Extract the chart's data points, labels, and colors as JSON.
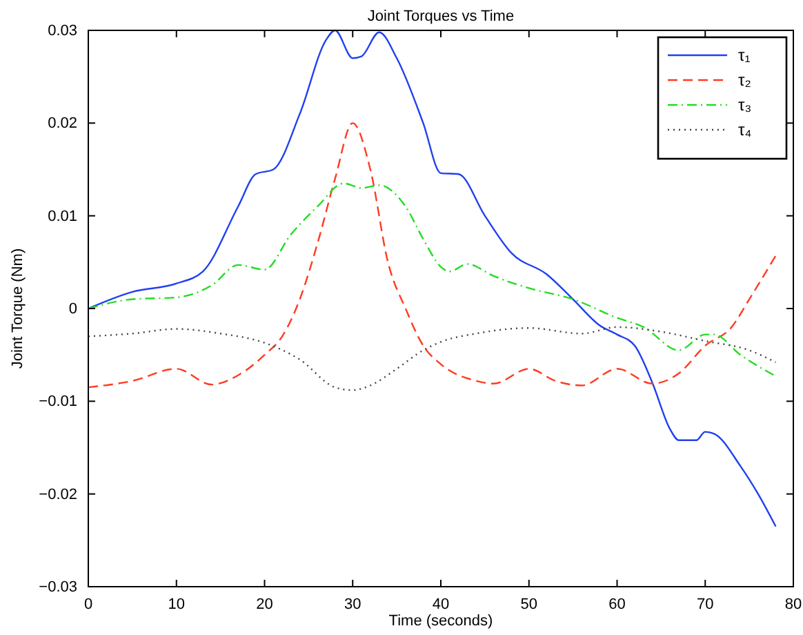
{
  "chart_data": {
    "type": "line",
    "title": "Joint Torques vs Time",
    "xlabel": "Time (seconds)",
    "ylabel": "Joint Torque (Nm)",
    "xlim": [
      0,
      80
    ],
    "ylim": [
      -0.03,
      0.03
    ],
    "xticks": [
      0,
      10,
      20,
      30,
      40,
      50,
      60,
      70,
      80
    ],
    "yticks": [
      -0.03,
      -0.02,
      -0.01,
      0,
      0.01,
      0.02,
      0.03
    ],
    "grid": false,
    "legend": "top right",
    "marker": "none",
    "series": [
      {
        "name": "τ₁",
        "color": "#2040f0",
        "line_style": "solid",
        "x": [
          0,
          5,
          10,
          13,
          17,
          19,
          21,
          24,
          27,
          28,
          30,
          31,
          33,
          35,
          38,
          40,
          42,
          45,
          48,
          52,
          55,
          58,
          60,
          62,
          64,
          66,
          67,
          69,
          70,
          71,
          74,
          76,
          78
        ],
        "values": [
          0,
          0.0018,
          0.0027,
          0.004,
          0.011,
          0.0145,
          0.015,
          0.021,
          0.029,
          0.03,
          0.027,
          0.0272,
          0.0298,
          0.027,
          0.02,
          0.0146,
          0.0145,
          0.01,
          0.006,
          0.0037,
          0.001,
          -0.0018,
          -0.0028,
          -0.004,
          -0.008,
          -0.013,
          -0.0142,
          -0.0142,
          -0.0133,
          -0.0135,
          -0.017,
          -0.02,
          -0.0235
        ]
      },
      {
        "name": "τ₂",
        "color": "#ff3b1f",
        "line_style": "dashed",
        "x": [
          0,
          5,
          10,
          14,
          17,
          20,
          22,
          24,
          26,
          28,
          30,
          32,
          34,
          36,
          38,
          40,
          44,
          46,
          50,
          53,
          56,
          60,
          64,
          67,
          70,
          73,
          75,
          78
        ],
        "values": [
          -0.0085,
          -0.0078,
          -0.0065,
          -0.0082,
          -0.0072,
          -0.005,
          -0.003,
          0.001,
          0.007,
          0.014,
          0.02,
          0.015,
          0.005,
          0,
          -0.004,
          -0.006,
          -0.0078,
          -0.0081,
          -0.0065,
          -0.0078,
          -0.0083,
          -0.0065,
          -0.0081,
          -0.007,
          -0.004,
          -0.002,
          0.001,
          0.0057
        ]
      },
      {
        "name": "τ₃",
        "color": "#22dd22",
        "line_style": "dashdot",
        "x": [
          0,
          5,
          10,
          14,
          17,
          20,
          23,
          26,
          29,
          31,
          33,
          36,
          38,
          40,
          41,
          43,
          46,
          50,
          55,
          60,
          63,
          67,
          70,
          71,
          74,
          78
        ],
        "values": [
          0,
          0.001,
          0.0012,
          0.0025,
          0.0047,
          0.0042,
          0.008,
          0.011,
          0.0135,
          0.013,
          0.0133,
          0.011,
          0.0075,
          0.0045,
          0.004,
          0.0048,
          0.0035,
          0.0022,
          0.001,
          -0.001,
          -0.002,
          -0.0045,
          -0.0028,
          -0.0028,
          -0.005,
          -0.0073
        ]
      },
      {
        "name": "τ₄",
        "color": "#444444",
        "line_style": "dotted",
        "x": [
          0,
          5,
          10,
          15,
          20,
          24,
          28,
          30,
          32,
          35,
          38,
          40,
          44,
          50,
          56,
          60,
          65,
          70,
          75,
          78
        ],
        "values": [
          -0.003,
          -0.0027,
          -0.0022,
          -0.0027,
          -0.0037,
          -0.0055,
          -0.0085,
          -0.0088,
          -0.0083,
          -0.0065,
          -0.0045,
          -0.0036,
          -0.0027,
          -0.0021,
          -0.0027,
          -0.002,
          -0.0025,
          -0.0035,
          -0.0045,
          -0.0058
        ]
      }
    ]
  }
}
